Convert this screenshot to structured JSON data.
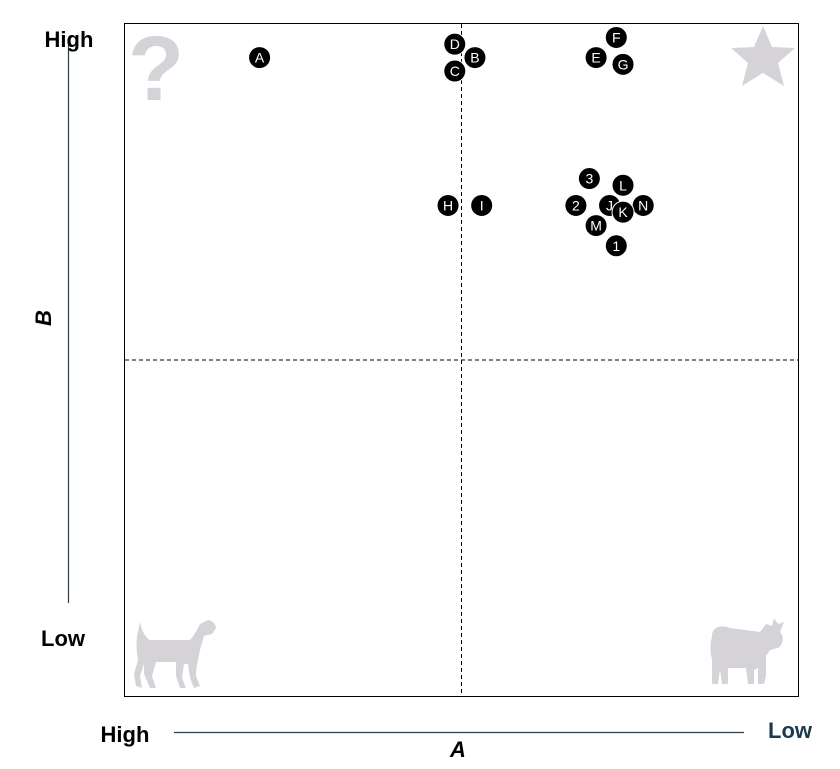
{
  "chart_data": {
    "type": "scatter",
    "title": "",
    "xlabel": "A",
    "ylabel": "B",
    "x_axis": {
      "high_label": "High",
      "low_label": "Low",
      "direction": "high-to-low left-to-right",
      "range": [
        0,
        100
      ]
    },
    "y_axis": {
      "high_label": "High",
      "low_label": "Low",
      "direction": "low-to-high bottom-to-top",
      "range": [
        0,
        100
      ]
    },
    "quadrant_divider": {
      "x": 50,
      "y": 50,
      "style": "dashed"
    },
    "quadrant_icons": {
      "top_left": "question-mark-icon",
      "top_right": "star-icon",
      "bottom_left": "dog-icon",
      "bottom_right": "cow-icon",
      "icon_color": "#d6d3d8"
    },
    "marker_color": "#000000",
    "label_color": "#ffffff",
    "points": [
      {
        "label": "A",
        "x": 80,
        "y": 95
      },
      {
        "label": "B",
        "x": 48,
        "y": 95
      },
      {
        "label": "D",
        "x": 51,
        "y": 97
      },
      {
        "label": "C",
        "x": 51,
        "y": 93
      },
      {
        "label": "F",
        "x": 27,
        "y": 98
      },
      {
        "label": "E",
        "x": 30,
        "y": 95
      },
      {
        "label": "G",
        "x": 26,
        "y": 94
      },
      {
        "label": "H",
        "x": 52,
        "y": 73
      },
      {
        "label": "I",
        "x": 47,
        "y": 73
      },
      {
        "label": "3",
        "x": 31,
        "y": 77
      },
      {
        "label": "L",
        "x": 26,
        "y": 76
      },
      {
        "label": "J",
        "x": 28,
        "y": 73
      },
      {
        "label": "2",
        "x": 33,
        "y": 73
      },
      {
        "label": "N",
        "x": 23,
        "y": 73
      },
      {
        "label": "K",
        "x": 26,
        "y": 72
      },
      {
        "label": "M",
        "x": 30,
        "y": 70
      },
      {
        "label": "1",
        "x": 27,
        "y": 67
      }
    ]
  }
}
